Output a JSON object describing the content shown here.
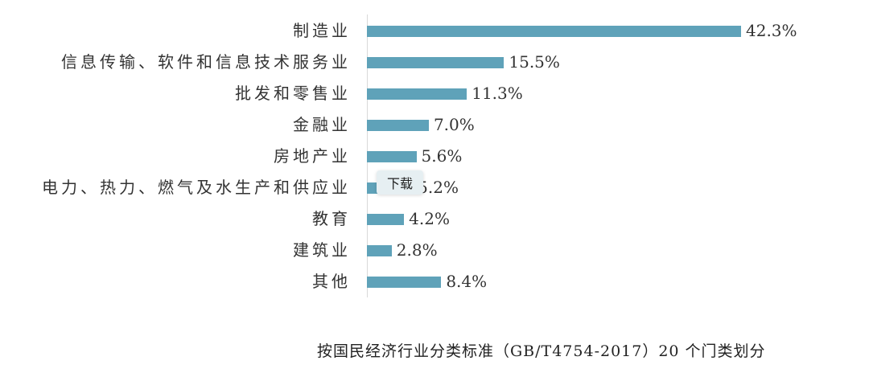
{
  "chart_data": {
    "type": "bar",
    "orientation": "horizontal",
    "title": "",
    "caption": "按国民经济行业分类标准（GB/T4754-2017）20 个门类划分",
    "xlabel": "",
    "ylabel": "",
    "categories": [
      "制造业",
      "信息传输、软件和信息技术服务业",
      "批发和零售业",
      "金融业",
      "房地产业",
      "电力、热力、燃气及水生产和供应业",
      "教育",
      "建筑业",
      "其他"
    ],
    "values": [
      42.3,
      15.5,
      11.3,
      7.0,
      5.6,
      5.2,
      4.2,
      2.8,
      8.4
    ],
    "value_labels": [
      "42.3%",
      "15.5%",
      "11.3%",
      "7.0%",
      "5.6%",
      "5.2%",
      "4.2%",
      "2.8%",
      "8.4%"
    ],
    "unit": "%",
    "xlim": [
      0,
      42.3
    ],
    "grid": false,
    "legend": null,
    "bar_color": "#5fa2b9"
  },
  "tooltip": {
    "label": "下载"
  },
  "caption": "按国民经济行业分类标准（GB/T4754-2017）20 个门类划分"
}
